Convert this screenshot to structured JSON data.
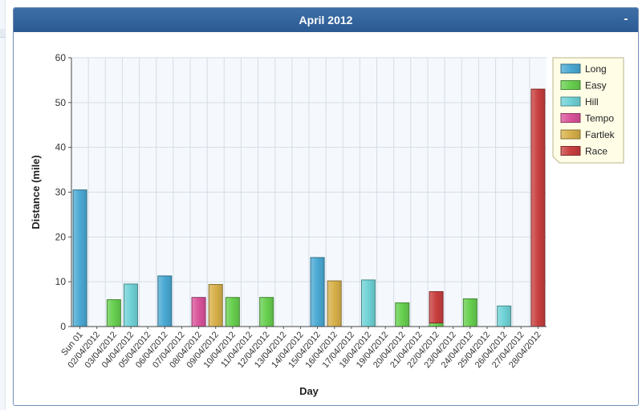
{
  "panel": {
    "title": "April 2012",
    "collapse_label": "-"
  },
  "colors": {
    "Long": "#4aa9d3",
    "Easy": "#67cf4f",
    "Hill": "#6fd2d6",
    "Tempo": "#d9539a",
    "Fartlek": "#d7b04a",
    "Race": "#c83f3f"
  },
  "chart_data": {
    "type": "bar",
    "stacked": true,
    "title": "",
    "xlabel": "Day",
    "ylabel": "Distance (mile)",
    "ylim": [
      0,
      60
    ],
    "yticks": [
      0,
      10,
      20,
      30,
      40,
      50,
      60
    ],
    "grid": true,
    "legend_position": "top-right",
    "legend": [
      "Long",
      "Easy",
      "Hill",
      "Tempo",
      "Fartlek",
      "Race"
    ],
    "categories": [
      "Sun 01",
      "02/04/2012",
      "03/04/2012",
      "04/04/2012",
      "05/04/2012",
      "06/04/2012",
      "07/04/2012",
      "08/04/2012",
      "09/04/2012",
      "10/04/2012",
      "11/04/2012",
      "12/04/2012",
      "13/04/2012",
      "14/04/2012",
      "15/04/2012",
      "16/04/2012",
      "17/04/2012",
      "18/04/2012",
      "19/04/2012",
      "20/04/2012",
      "21/04/2012",
      "22/04/2012",
      "23/04/2012",
      "24/04/2012",
      "25/04/2012",
      "26/04/2012",
      "27/04/2012",
      "28/04/2012"
    ],
    "bars": [
      {
        "category": "Sun 01",
        "segments": [
          {
            "type": "Long",
            "value": 30.5
          }
        ]
      },
      {
        "category": "03/04/2012",
        "segments": [
          {
            "type": "Easy",
            "value": 6
          }
        ]
      },
      {
        "category": "04/04/2012",
        "segments": [
          {
            "type": "Hill",
            "value": 9.5
          }
        ]
      },
      {
        "category": "06/04/2012",
        "segments": [
          {
            "type": "Long",
            "value": 11.3
          }
        ]
      },
      {
        "category": "08/04/2012",
        "segments": [
          {
            "type": "Tempo",
            "value": 6.5
          }
        ]
      },
      {
        "category": "09/04/2012",
        "segments": [
          {
            "type": "Fartlek",
            "value": 9.4
          }
        ]
      },
      {
        "category": "10/04/2012",
        "segments": [
          {
            "type": "Easy",
            "value": 6.5
          }
        ]
      },
      {
        "category": "12/04/2012",
        "segments": [
          {
            "type": "Easy",
            "value": 6.5
          }
        ]
      },
      {
        "category": "15/04/2012",
        "segments": [
          {
            "type": "Long",
            "value": 15.4
          }
        ]
      },
      {
        "category": "16/04/2012",
        "segments": [
          {
            "type": "Fartlek",
            "value": 10.2
          }
        ]
      },
      {
        "category": "18/04/2012",
        "segments": [
          {
            "type": "Hill",
            "value": 10.4
          }
        ]
      },
      {
        "category": "20/04/2012",
        "segments": [
          {
            "type": "Easy",
            "value": 5.3
          }
        ]
      },
      {
        "category": "22/04/2012",
        "segments": [
          {
            "type": "Easy",
            "value": 0.8
          },
          {
            "type": "Race",
            "value": 7
          }
        ]
      },
      {
        "category": "24/04/2012",
        "segments": [
          {
            "type": "Easy",
            "value": 6.2
          }
        ]
      },
      {
        "category": "26/04/2012",
        "segments": [
          {
            "type": "Hill",
            "value": 4.6
          }
        ]
      },
      {
        "category": "28/04/2012",
        "segments": [
          {
            "type": "Race",
            "value": 53
          }
        ]
      }
    ]
  }
}
